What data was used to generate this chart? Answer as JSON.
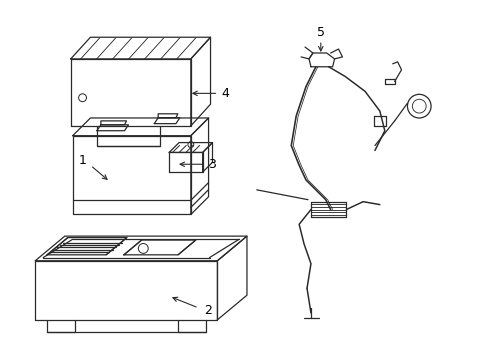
{
  "background_color": "#ffffff",
  "line_color": "#2a2a2a",
  "label_color": "#000000",
  "lw": 0.9
}
